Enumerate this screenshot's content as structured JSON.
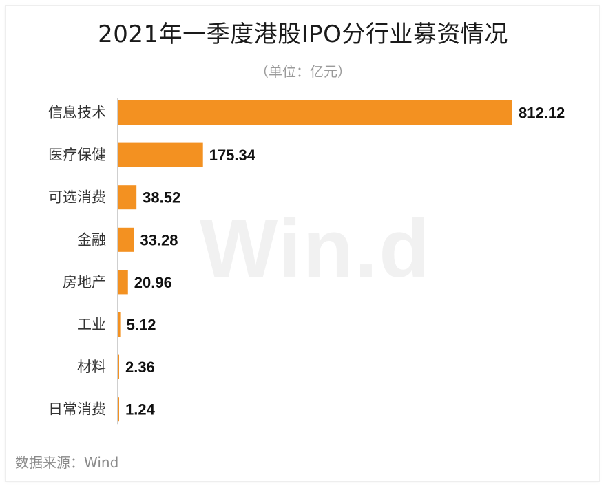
{
  "title": "2021年一季度港股IPO分行业募资情况",
  "subtitle": "（单位：亿元）",
  "watermark": "Win.d",
  "source": "数据来源：Wind",
  "colors": {
    "bar": "#f39121",
    "axis": "#cfcfcf"
  },
  "chart_data": {
    "type": "bar",
    "orientation": "horizontal",
    "categories": [
      "信息技术",
      "医疗保健",
      "可选消费",
      "金融",
      "房地产",
      "工业",
      "材料",
      "日常消费"
    ],
    "values": [
      812.12,
      175.34,
      38.52,
      33.28,
      20.96,
      5.12,
      2.36,
      1.24
    ],
    "value_labels": [
      "812.12",
      "175.34",
      "38.52",
      "33.28",
      "20.96",
      "5.12",
      "2.36",
      "1.24"
    ],
    "title": "2021年一季度港股IPO分行业募资情况",
    "subtitle": "（单位：亿元）",
    "xlim": [
      0,
      812.12
    ],
    "grid": false,
    "legend": "none"
  }
}
